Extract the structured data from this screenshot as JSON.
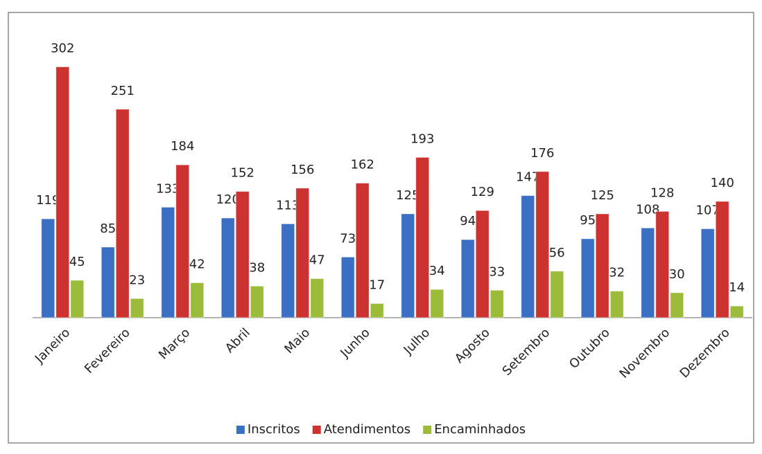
{
  "chart_data": {
    "type": "bar",
    "categories": [
      "Janeiro",
      "Fevereiro",
      "Março",
      "Abril",
      "Maio",
      "Junho",
      "Julho",
      "Agosto",
      "Setembro",
      "Outubro",
      "Novembro",
      "Dezembro"
    ],
    "series": [
      {
        "name": "Inscritos",
        "color": "#3a6fc4",
        "values": [
          119,
          85,
          133,
          120,
          113,
          73,
          125,
          94,
          147,
          95,
          108,
          107
        ]
      },
      {
        "name": "Atendimentos",
        "color": "#cc3330",
        "values": [
          302,
          251,
          184,
          152,
          156,
          162,
          193,
          129,
          176,
          125,
          128,
          140
        ]
      },
      {
        "name": "Encaminhados",
        "color": "#9cbb3a",
        "values": [
          45,
          23,
          42,
          38,
          47,
          17,
          34,
          33,
          56,
          32,
          30,
          14
        ]
      }
    ],
    "ylim": [
      0,
      350
    ],
    "legend": "bottom"
  }
}
